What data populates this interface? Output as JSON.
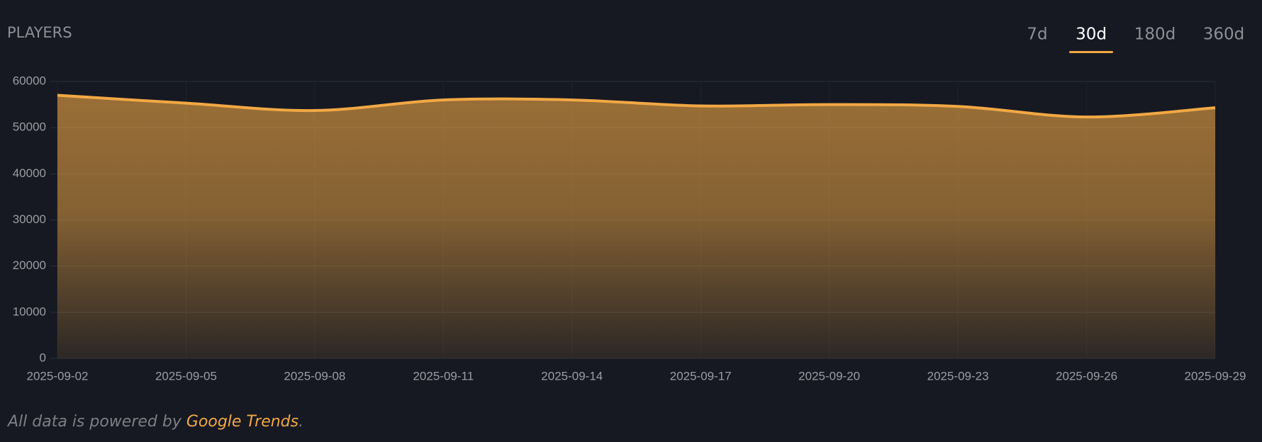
{
  "header": {
    "title": "PLAYERS",
    "tabs": [
      "7d",
      "30d",
      "180d",
      "360d"
    ],
    "active_tab": 1
  },
  "chart_data": {
    "type": "area",
    "x": [
      "2025-09-02",
      "2025-09-05",
      "2025-09-08",
      "2025-09-11",
      "2025-09-14",
      "2025-09-17",
      "2025-09-20",
      "2025-09-23",
      "2025-09-26",
      "2025-09-29"
    ],
    "series": [
      {
        "name": "Players",
        "color": "#f2a844",
        "values": [
          57000,
          55300,
          53700,
          56000,
          56000,
          54700,
          55000,
          54600,
          52300,
          54300
        ]
      }
    ],
    "ylim": [
      0,
      60000
    ],
    "yticks": [
      0,
      10000,
      20000,
      30000,
      40000,
      50000,
      60000
    ],
    "grid": true
  },
  "footer": {
    "text": "All data is powered by",
    "link": "Google Trends",
    "end": "."
  }
}
